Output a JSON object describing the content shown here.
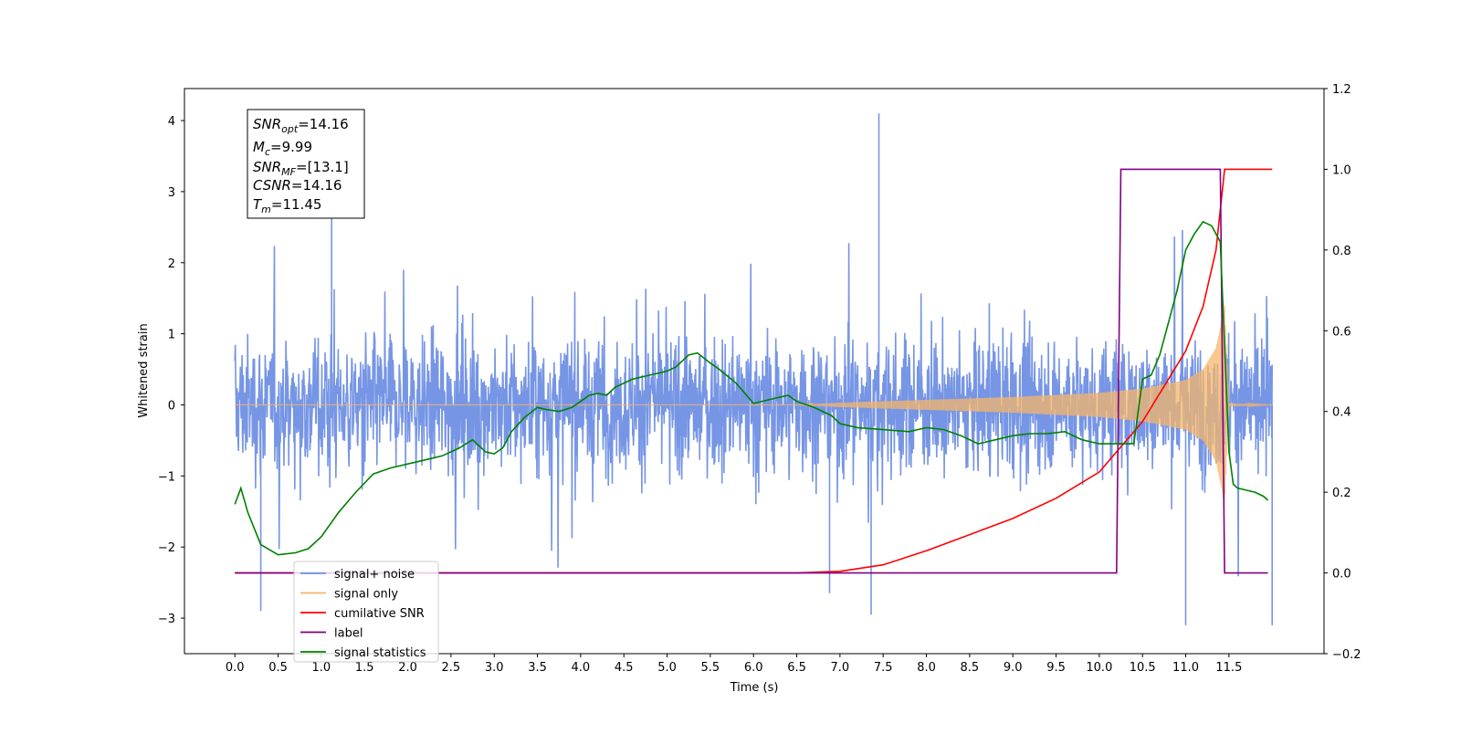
{
  "chart_data": {
    "type": "line",
    "title": "",
    "xlabel": "Time (s)",
    "ylabel": "Whitened strain",
    "xlim": [
      -0.5833,
      12.6
    ],
    "ylim": [
      -3.5,
      4.45
    ],
    "y2lim": [
      -0.2,
      1.2
    ],
    "x_ticks": [
      0.0,
      0.5,
      1.0,
      1.5,
      2.0,
      2.5,
      3.0,
      3.5,
      4.0,
      4.5,
      5.0,
      5.5,
      6.0,
      6.5,
      7.0,
      7.5,
      8.0,
      8.5,
      9.0,
      9.5,
      10.0,
      10.5,
      11.0,
      11.5
    ],
    "x_tick_labels": [
      "0.0",
      "0.5",
      "1.0",
      "1.5",
      "2.0",
      "2.5",
      "3.0",
      "3.5",
      "4.0",
      "4.5",
      "5.0",
      "5.5",
      "6.0",
      "6.5",
      "7.0",
      "7.5",
      "8.0",
      "8.5",
      "9.0",
      "9.5",
      "10.0",
      "10.5",
      "11.0",
      "11.5"
    ],
    "y_ticks": [
      -3,
      -2,
      -1,
      0,
      1,
      2,
      3,
      4
    ],
    "y_tick_labels": [
      "−3",
      "−2",
      "−1",
      "0",
      "1",
      "2",
      "3",
      "4"
    ],
    "y2_ticks": [
      -0.2,
      0.0,
      0.2,
      0.4,
      0.6,
      0.8,
      1.0,
      1.2
    ],
    "y2_tick_labels": [
      "−0.2",
      "0.0",
      "0.2",
      "0.4",
      "0.6",
      "0.8",
      "1.0",
      "1.2"
    ],
    "legend_placement": "lower-left",
    "grid": false,
    "stats_box": {
      "snr_opt": {
        "base": "SNR",
        "sub": "opt",
        "value": "=14.16"
      },
      "mc": {
        "base": "M",
        "sub": "c",
        "value": "=9.99"
      },
      "snr_mf": {
        "base": "SNR",
        "sub": "MF",
        "value": "=[13.1]"
      },
      "csnr": {
        "base": "CSNR",
        "value": "=14.16"
      },
      "tm": {
        "base": "T",
        "sub": "m",
        "value": "=11.45"
      }
    },
    "series": [
      {
        "name": "signal+ noise",
        "axis": "left",
        "color": "#6f8fe4",
        "kind": "noise",
        "x_range": [
          0.0,
          12.0
        ],
        "approx_std": 0.75,
        "approx_min": -3.1,
        "approx_max": 4.1
      },
      {
        "name": "signal only",
        "axis": "left",
        "color": "#f5b66a",
        "kind": "chirp",
        "merger_time": 11.45,
        "envelope_x": [
          0.0,
          6.5,
          7.0,
          8.0,
          9.0,
          10.0,
          10.5,
          11.0,
          11.2,
          11.35,
          11.42,
          11.45,
          11.5,
          12.0
        ],
        "envelope_y": [
          0.0,
          0.0,
          0.03,
          0.07,
          0.11,
          0.17,
          0.23,
          0.35,
          0.5,
          0.8,
          1.2,
          1.4,
          0.02,
          0.0
        ]
      },
      {
        "name": "cumilative SNR",
        "axis": "right",
        "color": "#ff0000",
        "x": [
          0.0,
          6.5,
          7.0,
          7.5,
          8.0,
          8.5,
          9.0,
          9.5,
          10.0,
          10.5,
          11.0,
          11.2,
          11.35,
          11.45,
          12.0
        ],
        "y": [
          0.0,
          0.0,
          0.004,
          0.02,
          0.055,
          0.095,
          0.135,
          0.185,
          0.25,
          0.375,
          0.55,
          0.66,
          0.8,
          1.0,
          1.0
        ]
      },
      {
        "name": "label",
        "axis": "right",
        "color": "#800080",
        "x": [
          0.0,
          10.2,
          10.25,
          11.4,
          11.45,
          11.95
        ],
        "y": [
          0.0,
          0.0,
          1.0,
          1.0,
          0.0,
          0.0
        ]
      },
      {
        "name": "signal statistics",
        "axis": "right",
        "color": "#008000",
        "x": [
          0.0,
          0.07,
          0.15,
          0.3,
          0.5,
          0.7,
          0.85,
          1.0,
          1.2,
          1.4,
          1.6,
          1.8,
          2.0,
          2.2,
          2.4,
          2.6,
          2.75,
          2.9,
          3.0,
          3.1,
          3.2,
          3.35,
          3.5,
          3.6,
          3.75,
          3.9,
          4.0,
          4.1,
          4.2,
          4.3,
          4.4,
          4.6,
          4.8,
          5.0,
          5.1,
          5.25,
          5.35,
          5.5,
          5.6,
          5.8,
          6.0,
          6.2,
          6.4,
          6.5,
          6.7,
          6.9,
          7.0,
          7.2,
          7.5,
          7.8,
          8.0,
          8.2,
          8.4,
          8.6,
          8.8,
          9.0,
          9.2,
          9.4,
          9.6,
          9.8,
          10.0,
          10.2,
          10.4,
          10.5,
          10.6,
          10.7,
          10.8,
          10.9,
          11.0,
          11.1,
          11.2,
          11.3,
          11.4,
          11.5,
          11.55,
          11.6,
          11.7,
          11.8,
          11.9,
          11.95
        ],
        "y": [
          0.17,
          0.21,
          0.15,
          0.07,
          0.045,
          0.05,
          0.06,
          0.09,
          0.15,
          0.2,
          0.245,
          0.26,
          0.27,
          0.28,
          0.29,
          0.31,
          0.33,
          0.3,
          0.295,
          0.31,
          0.35,
          0.385,
          0.41,
          0.405,
          0.4,
          0.41,
          0.425,
          0.44,
          0.445,
          0.44,
          0.46,
          0.48,
          0.49,
          0.5,
          0.51,
          0.54,
          0.545,
          0.52,
          0.505,
          0.47,
          0.42,
          0.43,
          0.44,
          0.425,
          0.41,
          0.39,
          0.37,
          0.36,
          0.355,
          0.35,
          0.36,
          0.355,
          0.34,
          0.32,
          0.33,
          0.34,
          0.345,
          0.345,
          0.35,
          0.33,
          0.32,
          0.32,
          0.32,
          0.48,
          0.49,
          0.54,
          0.62,
          0.7,
          0.8,
          0.84,
          0.87,
          0.86,
          0.82,
          0.3,
          0.22,
          0.21,
          0.205,
          0.2,
          0.19,
          0.18
        ]
      }
    ]
  }
}
